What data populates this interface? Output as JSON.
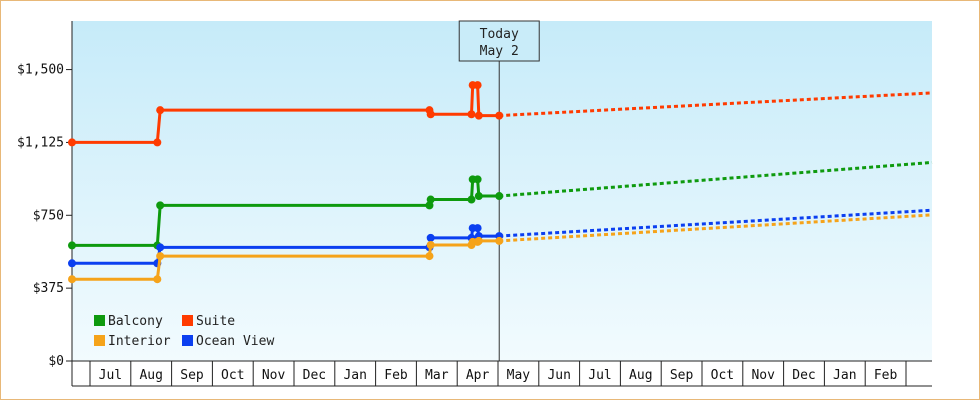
{
  "chart_data": {
    "type": "line",
    "title": "",
    "xlabel": "",
    "ylabel": "",
    "ylim": [
      0,
      1750
    ],
    "y_ticks": [
      {
        "value": 0,
        "label": "$0"
      },
      {
        "value": 375,
        "label": "$375"
      },
      {
        "value": 750,
        "label": "$750"
      },
      {
        "value": 1125,
        "label": "$1,125"
      },
      {
        "value": 1500,
        "label": "$1,500"
      }
    ],
    "x_months": [
      "Jul",
      "Aug",
      "Sep",
      "Oct",
      "Nov",
      "Dec",
      "Jan",
      "Feb",
      "Mar",
      "Apr",
      "May",
      "Jun",
      "Jul",
      "Aug",
      "Sep",
      "Oct",
      "Nov",
      "Dec",
      "Jan",
      "Feb"
    ],
    "today_marker": {
      "line1": "Today",
      "line2": "May 2",
      "x": 10.03
    },
    "legend": [
      {
        "name": "Balcony",
        "color": "#0e9a0e"
      },
      {
        "name": "Suite",
        "color": "#ff3b00"
      },
      {
        "name": "Interior",
        "color": "#f5a31a"
      },
      {
        "name": "Ocean View",
        "color": "#0b3ff0"
      }
    ],
    "series": [
      {
        "name": "Suite",
        "color": "#ff3b00",
        "points": [
          [
            -0.6,
            1125
          ],
          [
            1.65,
            1125
          ],
          [
            1.72,
            1291
          ],
          [
            8.32,
            1291
          ],
          [
            8.35,
            1270
          ],
          [
            9.35,
            1270
          ],
          [
            9.38,
            1420
          ],
          [
            9.5,
            1420
          ],
          [
            9.53,
            1263
          ],
          [
            10.03,
            1263
          ]
        ],
        "forecast": [
          [
            10.03,
            1263
          ],
          [
            21.05,
            1380
          ]
        ]
      },
      {
        "name": "Balcony",
        "color": "#0e9a0e",
        "points": [
          [
            -0.6,
            595
          ],
          [
            1.65,
            595
          ],
          [
            1.72,
            801
          ],
          [
            8.32,
            801
          ],
          [
            8.35,
            831
          ],
          [
            9.35,
            831
          ],
          [
            9.38,
            935
          ],
          [
            9.5,
            935
          ],
          [
            9.53,
            849
          ],
          [
            10.03,
            849
          ]
        ],
        "forecast": [
          [
            10.03,
            849
          ],
          [
            21.05,
            1022
          ]
        ]
      },
      {
        "name": "Ocean View",
        "color": "#0b3ff0",
        "points": [
          [
            -0.6,
            503
          ],
          [
            1.65,
            503
          ],
          [
            1.72,
            585
          ],
          [
            8.32,
            585
          ],
          [
            8.35,
            634
          ],
          [
            9.35,
            634
          ],
          [
            9.38,
            684
          ],
          [
            9.5,
            684
          ],
          [
            9.53,
            643
          ],
          [
            10.03,
            643
          ]
        ],
        "forecast": [
          [
            10.03,
            643
          ],
          [
            21.05,
            776
          ]
        ]
      },
      {
        "name": "Interior",
        "color": "#f5a31a",
        "points": [
          [
            -0.6,
            421
          ],
          [
            1.65,
            421
          ],
          [
            1.72,
            540
          ],
          [
            8.32,
            540
          ],
          [
            8.35,
            597
          ],
          [
            9.35,
            597
          ],
          [
            9.38,
            613
          ],
          [
            9.5,
            613
          ],
          [
            9.53,
            618
          ],
          [
            10.03,
            618
          ]
        ],
        "forecast": [
          [
            10.03,
            618
          ],
          [
            21.05,
            752
          ]
        ]
      }
    ]
  }
}
